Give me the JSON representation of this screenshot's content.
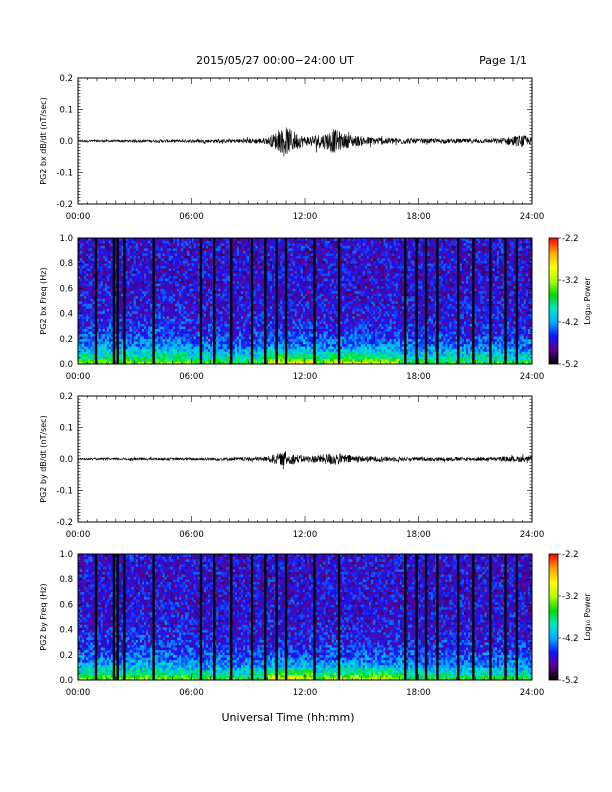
{
  "header": {
    "date_range": "2015/05/27  00:00−24:00 UT",
    "page": "Page 1/1"
  },
  "x_axis": {
    "label": "Universal Time (hh:mm)",
    "ticks": [
      "00:00",
      "06:00",
      "12:00",
      "18:00",
      "24:00"
    ],
    "range_hours": [
      0,
      24
    ]
  },
  "colorbar": {
    "label": "Log₁₀ Power",
    "ticks": [
      "-2.2",
      "-3.2",
      "-4.2",
      "-5.2"
    ],
    "range": [
      -5.2,
      -2.2
    ],
    "colors": [
      "#000000",
      "#5a008c",
      "#1414ff",
      "#00aaff",
      "#00e6c8",
      "#00dc00",
      "#aaff00",
      "#ffff00",
      "#ffaa00",
      "#ff0000"
    ]
  },
  "chart_data": [
    {
      "type": "line",
      "panel": "PG2 bx dB/dt",
      "ylabel": "PG2 bx dB/dt (nT/sec)",
      "ylim": [
        -0.2,
        0.2
      ],
      "yticks": [
        "0.2",
        "0.1",
        "0.0",
        "-0.1",
        "-0.2"
      ],
      "x_hours": [
        0,
        3,
        6,
        8,
        10,
        10.5,
        11,
        11.5,
        12,
        13,
        13.5,
        14,
        15,
        16,
        18,
        20,
        22,
        23.5,
        24
      ],
      "envelope_nT_per_sec": [
        0.004,
        0.004,
        0.005,
        0.006,
        0.01,
        0.03,
        0.045,
        0.03,
        0.015,
        0.025,
        0.04,
        0.025,
        0.015,
        0.012,
        0.008,
        0.007,
        0.007,
        0.02,
        0.01
      ]
    },
    {
      "type": "heatmap",
      "panel": "PG2 bx Freq",
      "ylabel": "PG2 bx Freq (Hz)",
      "ylim": [
        0.0,
        1.0
      ],
      "yticks": [
        "1.0",
        "0.8",
        "0.6",
        "0.4",
        "0.2",
        "0.0"
      ],
      "value": "Log10 Power",
      "gaps_hours": [
        0.95,
        1.9,
        2.1,
        2.45,
        4.0,
        6.5,
        7.2,
        8.1,
        9.2,
        9.9,
        10.5,
        11.0,
        12.5,
        13.8,
        17.3,
        17.9,
        18.4,
        19.0,
        20.1,
        20.9,
        21.8,
        22.6,
        23.2
      ]
    },
    {
      "type": "line",
      "panel": "PG2 by dB/dt",
      "ylabel": "PG2 by dB/dt (nT/sec)",
      "ylim": [
        -0.2,
        0.2
      ],
      "yticks": [
        "0.2",
        "0.1",
        "0.0",
        "-0.1",
        "-0.2"
      ],
      "x_hours": [
        0,
        3,
        6,
        8,
        10,
        10.5,
        11,
        11.5,
        12,
        13,
        13.5,
        14,
        15,
        16,
        18,
        20,
        22,
        23.5,
        24
      ],
      "envelope_nT_per_sec": [
        0.003,
        0.004,
        0.004,
        0.005,
        0.008,
        0.018,
        0.022,
        0.015,
        0.01,
        0.015,
        0.022,
        0.015,
        0.01,
        0.008,
        0.006,
        0.006,
        0.006,
        0.01,
        0.008
      ]
    },
    {
      "type": "heatmap",
      "panel": "PG2 by Freq",
      "ylabel": "PG2 by Freq (Hz)",
      "ylim": [
        0.0,
        1.0
      ],
      "yticks": [
        "1.0",
        "0.8",
        "0.6",
        "0.4",
        "0.2",
        "0.0"
      ],
      "value": "Log10 Power",
      "gaps_hours": [
        0.95,
        1.9,
        2.1,
        2.45,
        4.0,
        6.5,
        7.2,
        8.1,
        9.2,
        9.9,
        10.5,
        11.0,
        12.5,
        13.8,
        17.3,
        17.9,
        18.4,
        19.0,
        20.1,
        20.9,
        21.8,
        22.6,
        23.2
      ]
    }
  ]
}
